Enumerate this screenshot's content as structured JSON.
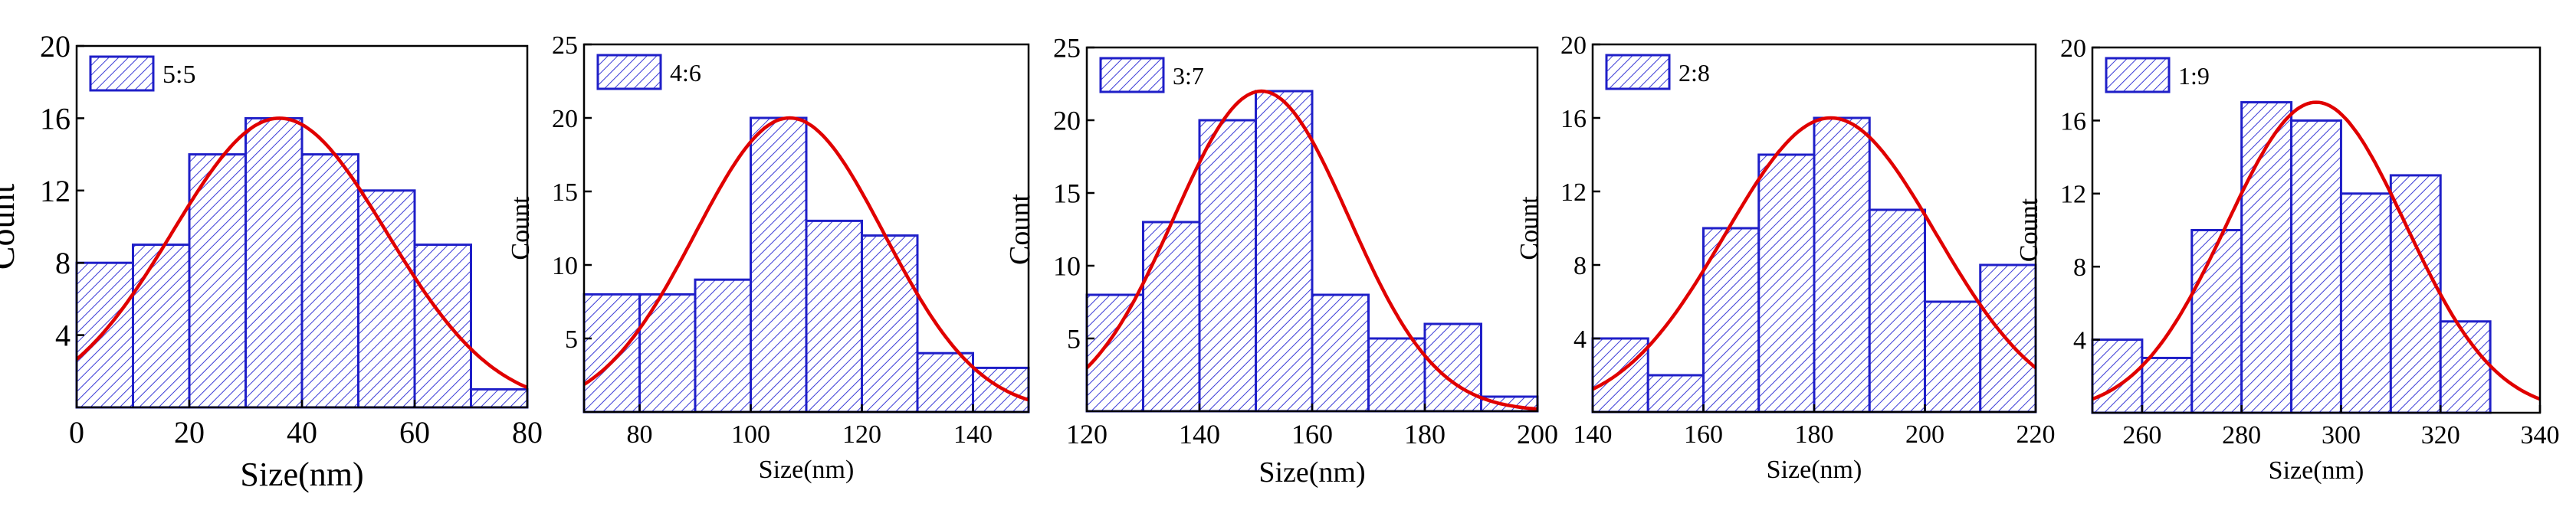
{
  "figure": {
    "description_title": "Size distribution histograms"
  },
  "colors": {
    "bar_edge": "#1f1fc8",
    "hatch": "#3a3ad6",
    "fit": "#e00000",
    "axis": "#000000"
  },
  "chart_data": [
    {
      "type": "bar",
      "legend": "5:5",
      "xlabel": "Size(nm)",
      "ylabel": "Count",
      "xlim": [
        0,
        80
      ],
      "ylim": [
        0,
        20
      ],
      "xticks": [
        0,
        20,
        40,
        60,
        80
      ],
      "yticks": [
        4,
        8,
        12,
        16,
        20
      ],
      "bin_width": 10,
      "bin_starts": [
        0,
        10,
        20,
        30,
        40,
        50,
        60,
        70
      ],
      "values": [
        8,
        9,
        14,
        16,
        14,
        12,
        9,
        1
      ],
      "fit": {
        "type": "gaussian",
        "mean": 36,
        "sigma": 19,
        "peak": 16
      },
      "legend_position": "top-left"
    },
    {
      "type": "bar",
      "legend": "4:6",
      "xlabel": "Size(nm)",
      "ylabel": "Count",
      "xlim": [
        70,
        150
      ],
      "ylim": [
        0,
        25
      ],
      "xticks": [
        80,
        100,
        120,
        140
      ],
      "yticks": [
        5,
        10,
        15,
        20,
        25
      ],
      "bin_width": 10,
      "bin_starts": [
        70,
        80,
        90,
        100,
        110,
        120,
        130,
        140
      ],
      "values": [
        8,
        8,
        9,
        20,
        13,
        12,
        4,
        3
      ],
      "fit": {
        "type": "gaussian",
        "mean": 107,
        "sigma": 17,
        "peak": 20
      },
      "legend_position": "top-left"
    },
    {
      "type": "bar",
      "legend": "3:7",
      "xlabel": "Size(nm)",
      "ylabel": "Count",
      "xlim": [
        120,
        200
      ],
      "ylim": [
        0,
        25
      ],
      "xticks": [
        120,
        140,
        160,
        180,
        200
      ],
      "yticks": [
        5,
        10,
        15,
        20,
        25
      ],
      "bin_width": 10,
      "bin_starts": [
        120,
        130,
        140,
        150,
        160,
        170,
        180,
        190
      ],
      "values": [
        8,
        13,
        20,
        22,
        8,
        5,
        6,
        1
      ],
      "fit": {
        "type": "gaussian",
        "mean": 151,
        "sigma": 15.5,
        "peak": 22
      },
      "legend_position": "top-left"
    },
    {
      "type": "bar",
      "legend": "2:8",
      "xlabel": "Size(nm)",
      "ylabel": "Count",
      "xlim": [
        140,
        220
      ],
      "ylim": [
        0,
        20
      ],
      "xticks": [
        140,
        160,
        180,
        200,
        220
      ],
      "yticks": [
        4,
        8,
        12,
        16,
        20
      ],
      "bin_width": 10,
      "bin_starts": [
        140,
        150,
        160,
        170,
        180,
        190,
        200,
        210
      ],
      "values": [
        4,
        2,
        10,
        14,
        16,
        11,
        6,
        8
      ],
      "fit": {
        "type": "gaussian",
        "mean": 183,
        "sigma": 19,
        "peak": 16
      },
      "legend_position": "top-left"
    },
    {
      "type": "bar",
      "legend": "1:9",
      "xlabel": "Size(nm)",
      "ylabel": "Count",
      "xlim": [
        250,
        340
      ],
      "ylim": [
        0,
        20
      ],
      "xticks": [
        260,
        280,
        300,
        320,
        340
      ],
      "yticks": [
        4,
        8,
        12,
        16,
        20
      ],
      "bin_width": 10,
      "bin_starts": [
        250,
        260,
        270,
        280,
        290,
        300,
        310,
        320
      ],
      "values": [
        4,
        3,
        10,
        17,
        16,
        12,
        13,
        5
      ],
      "fit": {
        "type": "gaussian",
        "mean": 295,
        "sigma": 18,
        "peak": 17
      },
      "legend_position": "top-left"
    }
  ]
}
